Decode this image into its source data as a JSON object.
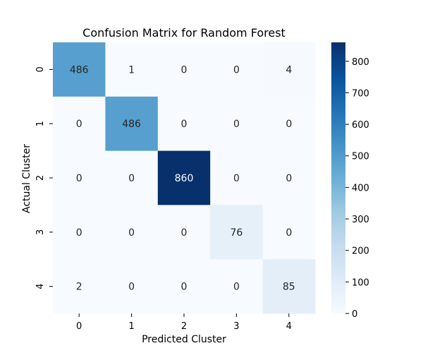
{
  "chart_data": {
    "type": "heatmap",
    "title": "Confusion Matrix for Random Forest",
    "xlabel": "Predicted Cluster",
    "ylabel": "Actual Cluster",
    "x_categories": [
      "0",
      "1",
      "2",
      "3",
      "4"
    ],
    "y_categories": [
      "0",
      "1",
      "2",
      "3",
      "4"
    ],
    "matrix": [
      [
        486,
        1,
        0,
        0,
        4
      ],
      [
        0,
        486,
        0,
        0,
        0
      ],
      [
        0,
        0,
        860,
        0,
        0
      ],
      [
        0,
        0,
        0,
        76,
        0
      ],
      [
        2,
        0,
        0,
        0,
        85
      ]
    ],
    "colorbar": {
      "min": 0,
      "max": 860,
      "ticks": [
        0,
        100,
        200,
        300,
        400,
        500,
        600,
        700,
        800
      ]
    },
    "colormap": {
      "name": "Blues",
      "stops": [
        "#f7fbff",
        "#deebf7",
        "#c6dbef",
        "#9ecae1",
        "#6baed6",
        "#4292c6",
        "#2171b5",
        "#08519c",
        "#08306b"
      ]
    }
  }
}
